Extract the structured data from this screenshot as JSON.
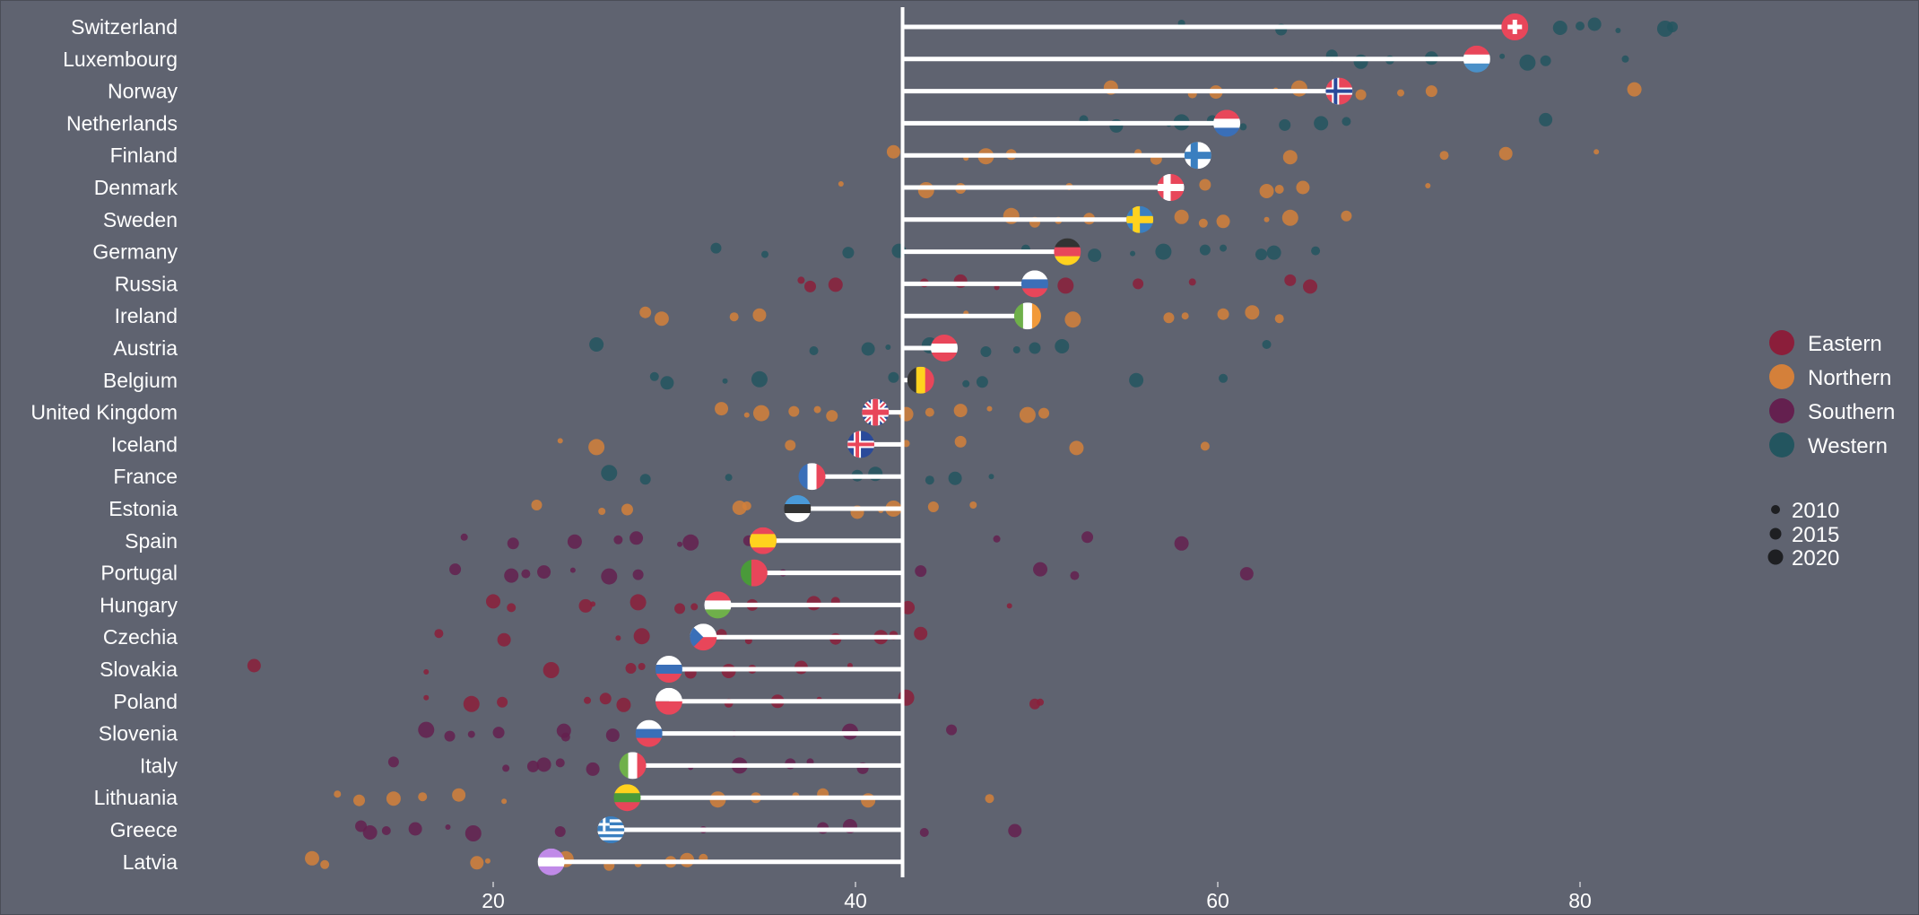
{
  "chart_data": {
    "type": "scatter",
    "subtype": "lollipop-with-background-dots",
    "title": "",
    "xlabel": "",
    "ylabel": "",
    "xlim": [
      6,
      94
    ],
    "xticks": [
      "20",
      "40",
      "60",
      "80"
    ],
    "xtick_values": [
      20,
      40,
      60,
      80
    ],
    "reference_line": 42.6,
    "grid": false,
    "legend_placement": "right",
    "region_colors": {
      "Eastern": "#8b1e3a",
      "Northern": "#d4803a",
      "Southern": "#64204f",
      "Western": "#23555f"
    },
    "legend_regions": [
      "Eastern",
      "Northern",
      "Southern",
      "Western"
    ],
    "legend_years": [
      "2010",
      "2015",
      "2020"
    ],
    "countries": [
      {
        "name": "Switzerland",
        "region": "Western",
        "value": 76.4,
        "flag": {
          "type": "swiss",
          "colors": [
            "#e8465a",
            "#ffffff"
          ]
        },
        "dots": [
          58,
          63.5,
          78.9,
          80,
          80.8,
          82.1,
          84.7,
          85.1
        ]
      },
      {
        "name": "Luxembourg",
        "region": "Western",
        "value": 74.3,
        "flag": {
          "type": "h",
          "colors": [
            "#e8465a",
            "#ffffff",
            "#4a90c8"
          ]
        },
        "dots": [
          66.3,
          67.9,
          69.5,
          71.8,
          75.7,
          77.1,
          78.1,
          82.5
        ]
      },
      {
        "name": "Norway",
        "region": "Northern",
        "value": 66.7,
        "flag": {
          "type": "cross",
          "colors": [
            "#e8465a",
            "#ffffff",
            "#2a4a9a"
          ]
        },
        "dots": [
          54.1,
          58.6,
          59.9,
          63.2,
          64.5,
          67.9,
          70.1,
          71.8,
          83
        ]
      },
      {
        "name": "Netherlands",
        "region": "Western",
        "value": 60.5,
        "flag": {
          "type": "h",
          "colors": [
            "#e8465a",
            "#ffffff",
            "#3a6fb8"
          ]
        },
        "dots": [
          52.6,
          54.4,
          57.3,
          58,
          59.7,
          61.4,
          63.7,
          65.7,
          67.1,
          78.1
        ]
      },
      {
        "name": "Finland",
        "region": "Northern",
        "value": 58.9,
        "flag": {
          "type": "cross",
          "colors": [
            "#ffffff",
            "#3a7fc0",
            "#3a7fc0"
          ]
        },
        "dots": [
          42.1,
          46.1,
          47.2,
          48.6,
          55.6,
          56.6,
          64,
          72.5,
          75.9,
          80.9
        ]
      },
      {
        "name": "Denmark",
        "region": "Northern",
        "value": 57.4,
        "flag": {
          "type": "cross",
          "colors": [
            "#e8465a",
            "#ffffff",
            "#ffffff"
          ]
        },
        "dots": [
          39.2,
          43.9,
          45.8,
          51.8,
          59.3,
          62.7,
          63.4,
          64.7,
          71.6
        ]
      },
      {
        "name": "Sweden",
        "region": "Northern",
        "value": 55.7,
        "flag": {
          "type": "cross",
          "colors": [
            "#3a7fc0",
            "#ffd21e",
            "#ffd21e"
          ]
        },
        "dots": [
          48.6,
          49.9,
          51.2,
          52.9,
          58,
          59.2,
          60.3,
          62.7,
          64,
          67.1
        ]
      },
      {
        "name": "Germany",
        "region": "Western",
        "value": 51.7,
        "flag": {
          "type": "h",
          "colors": [
            "#333333",
            "#e8465a",
            "#ffd21e"
          ]
        },
        "dots": [
          32.3,
          35,
          39.6,
          42.4,
          49.4,
          53.2,
          55.3,
          57,
          59.3,
          60.3,
          62.4,
          63.1,
          65.4
        ]
      },
      {
        "name": "Russia",
        "region": "Eastern",
        "value": 49.9,
        "flag": {
          "type": "h",
          "colors": [
            "#ffffff",
            "#3a6fb8",
            "#e8465a"
          ]
        },
        "dots": [
          37,
          37.5,
          38.9,
          43.8,
          45.8,
          47.8,
          51.6,
          55.6,
          58.6,
          64,
          65.1
        ]
      },
      {
        "name": "Ireland",
        "region": "Northern",
        "value": 49.5,
        "flag": {
          "type": "v",
          "colors": [
            "#6fb04a",
            "#ffffff",
            "#f29a3a"
          ]
        },
        "dots": [
          28.4,
          29.3,
          33.3,
          34.7,
          46.1,
          52,
          57.3,
          58.2,
          60.3,
          61.9,
          63.4
        ]
      },
      {
        "name": "Austria",
        "region": "Western",
        "value": 44.9,
        "flag": {
          "type": "h",
          "colors": [
            "#e8465a",
            "#ffffff",
            "#e8465a"
          ]
        },
        "dots": [
          25.7,
          37.7,
          40.7,
          41.8,
          44.1,
          47.2,
          48.9,
          49.9,
          51.4,
          62.7
        ]
      },
      {
        "name": "Belgium",
        "region": "Western",
        "value": 43.6,
        "flag": {
          "type": "v",
          "colors": [
            "#333333",
            "#ffd21e",
            "#e8465a"
          ]
        },
        "dots": [
          28.9,
          29.6,
          32.8,
          34.7,
          42.1,
          46.1,
          47,
          55.5,
          60.3
        ]
      },
      {
        "name": "United Kingdom",
        "region": "Northern",
        "value": 41.1,
        "flag": {
          "type": "uk",
          "colors": [
            "#2a4a9a",
            "#ffffff",
            "#e8465a"
          ]
        },
        "dots": [
          32.6,
          34,
          34.8,
          36.6,
          37.9,
          38.7,
          42.8,
          44.1,
          45.8,
          47.4,
          49.5,
          50.4
        ]
      },
      {
        "name": "Iceland",
        "region": "Northern",
        "value": 40.3,
        "flag": {
          "type": "cross",
          "colors": [
            "#2a4a9a",
            "#ffffff",
            "#e8465a"
          ]
        },
        "dots": [
          23.7,
          25.7,
          36.4,
          42.8,
          45.8,
          52.2,
          59.3
        ]
      },
      {
        "name": "France",
        "region": "Western",
        "value": 37.6,
        "flag": {
          "type": "v",
          "colors": [
            "#3a6fb8",
            "#ffffff",
            "#e8465a"
          ]
        },
        "dots": [
          26.4,
          28.4,
          33,
          40.1,
          41.1,
          44.1,
          45.5,
          47.5
        ]
      },
      {
        "name": "Estonia",
        "region": "Northern",
        "value": 36.8,
        "flag": {
          "type": "h",
          "colors": [
            "#4a9ad8",
            "#333333",
            "#ffffff"
          ]
        },
        "dots": [
          22.4,
          26,
          27.4,
          33.6,
          34,
          40.1,
          41.4,
          42.1,
          44.3,
          46.5
        ]
      },
      {
        "name": "Spain",
        "region": "Southern",
        "value": 34.9,
        "flag": {
          "type": "h3",
          "colors": [
            "#e8465a",
            "#ffd21e",
            "#e8465a"
          ]
        },
        "dots": [
          18.4,
          21.1,
          24.5,
          26.9,
          27.9,
          30.3,
          30.9,
          34.1,
          47.8,
          52.8,
          58
        ]
      },
      {
        "name": "Portugal",
        "region": "Southern",
        "value": 34.4,
        "flag": {
          "type": "v2",
          "colors": [
            "#4a9a3a",
            "#e8465a"
          ]
        },
        "dots": [
          17.9,
          21,
          21.8,
          22.8,
          24.4,
          26.4,
          28,
          36,
          43.6,
          50.2,
          52.1,
          61.6
        ]
      },
      {
        "name": "Hungary",
        "region": "Eastern",
        "value": 32.4,
        "flag": {
          "type": "h",
          "colors": [
            "#e8465a",
            "#ffffff",
            "#6fb04a"
          ]
        },
        "dots": [
          20,
          21,
          25.1,
          25.5,
          28,
          30.3,
          31.1,
          34.3,
          37.7,
          38.9,
          42.9,
          48.5
        ]
      },
      {
        "name": "Czechia",
        "region": "Eastern",
        "value": 31.6,
        "flag": {
          "type": "czech",
          "colors": [
            "#ffffff",
            "#e8465a",
            "#3a6fb8"
          ]
        },
        "dots": [
          17,
          20.6,
          26.9,
          28.2,
          32.6,
          34.1,
          38.9,
          41.4,
          42.1,
          43.6
        ]
      },
      {
        "name": "Slovakia",
        "region": "Eastern",
        "value": 29.7,
        "flag": {
          "type": "h",
          "colors": [
            "#ffffff",
            "#3a6fb8",
            "#e8465a"
          ]
        },
        "dots": [
          6.8,
          16.3,
          23.2,
          27.6,
          28.2,
          30.9,
          33,
          34.3,
          37,
          39.7
        ]
      },
      {
        "name": "Poland",
        "region": "Eastern",
        "value": 29.7,
        "flag": {
          "type": "h2",
          "colors": [
            "#ffffff",
            "#e8465a"
          ]
        },
        "dots": [
          16.3,
          18.8,
          20.5,
          25.2,
          26.2,
          27.2,
          33,
          35.7,
          38,
          42.8,
          49.9,
          50.2
        ]
      },
      {
        "name": "Slovenia",
        "region": "Southern",
        "value": 28.6,
        "flag": {
          "type": "h",
          "colors": [
            "#ffffff",
            "#3a6fb8",
            "#e8465a"
          ]
        },
        "dots": [
          16.3,
          17.6,
          18.8,
          20.3,
          23.9,
          24,
          26.6,
          33.3,
          39.7,
          45.3
        ]
      },
      {
        "name": "Italy",
        "region": "Southern",
        "value": 27.7,
        "flag": {
          "type": "v",
          "colors": [
            "#6fb04a",
            "#ffffff",
            "#e8465a"
          ]
        },
        "dots": [
          14.5,
          20.7,
          22.2,
          22.8,
          23.7,
          25.5,
          30.9,
          33.6,
          36.4,
          37.5,
          40.4
        ]
      },
      {
        "name": "Lithuania",
        "region": "Northern",
        "value": 27.4,
        "flag": {
          "type": "h",
          "colors": [
            "#ffd21e",
            "#4a9a3a",
            "#e8465a"
          ]
        },
        "dots": [
          11.4,
          12.6,
          14.5,
          16.1,
          18.1,
          20.6,
          32.4,
          34.5,
          36.7,
          38.2,
          40.7,
          47.4
        ]
      },
      {
        "name": "Greece",
        "region": "Southern",
        "value": 26.5,
        "flag": {
          "type": "greece",
          "colors": [
            "#3a7fc0",
            "#ffffff"
          ]
        },
        "dots": [
          12.7,
          13.2,
          14.1,
          15.7,
          17.5,
          18.9,
          23.7,
          31.6,
          38.2,
          39.7,
          43.8,
          48.8
        ]
      },
      {
        "name": "Latvia",
        "region": "Northern",
        "value": 23.2,
        "flag": {
          "type": "h",
          "colors": [
            "#c08ae8",
            "#ffffff",
            "#c08ae8"
          ]
        },
        "dots": [
          10,
          10.7,
          19.1,
          19.7,
          24,
          26.4,
          28,
          29.8,
          30.7,
          31.6
        ]
      }
    ]
  }
}
